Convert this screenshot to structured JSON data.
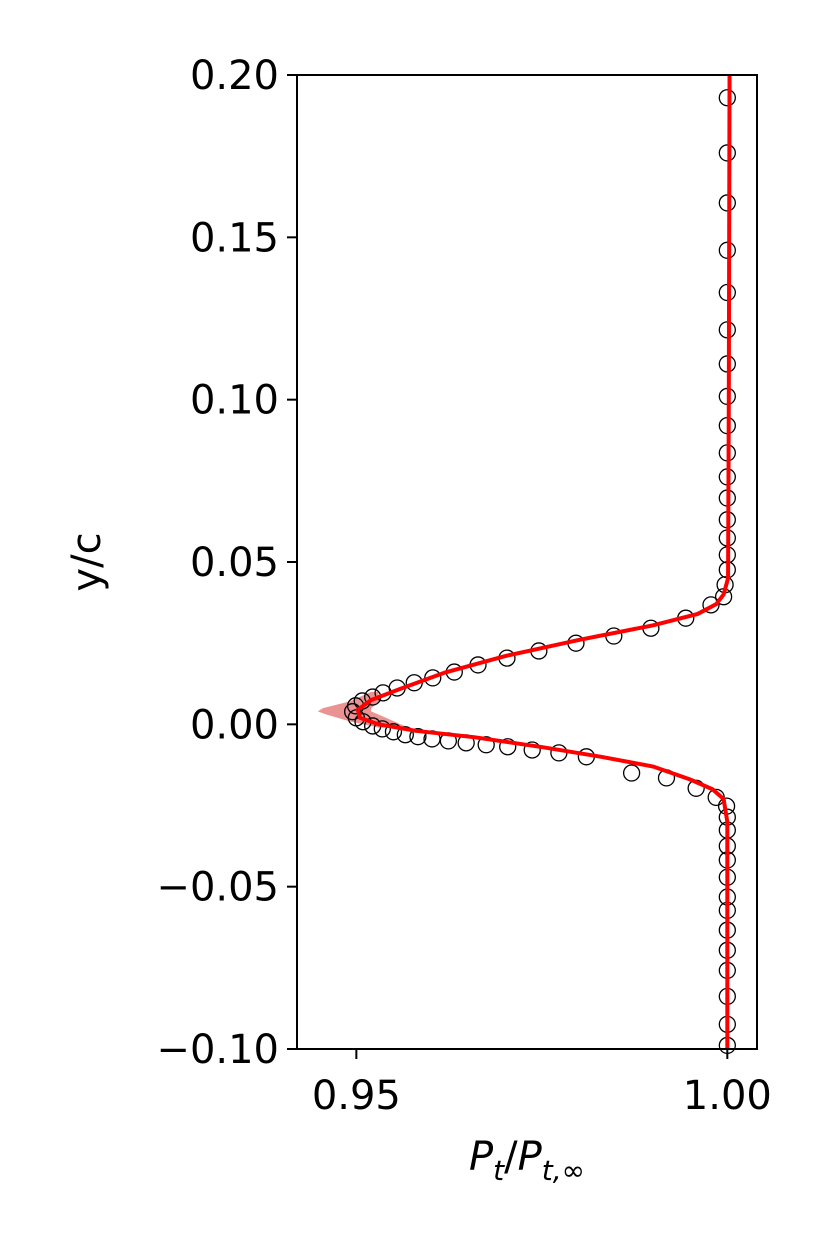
{
  "chart_data": {
    "type": "scatter",
    "xlabel": [
      "P",
      "t",
      "/",
      "P",
      "t,∞"
    ],
    "ylabel": "y/c",
    "xlim": [
      0.942,
      1.004
    ],
    "ylim": [
      -0.1,
      0.2
    ],
    "xticks": [
      0.95,
      {
        "value": 1.0,
        "label": "1.00"
      }
    ],
    "yticks": [
      {
        "value": -0.1,
        "label": "−0.10"
      },
      {
        "value": -0.05,
        "label": "−0.05"
      },
      {
        "value": 0.0,
        "label": "0.00"
      },
      0.05,
      {
        "value": 0.1,
        "label": "0.10"
      },
      0.15,
      {
        "value": 0.2,
        "label": "0.20"
      }
    ],
    "band": {
      "color": "#e88080",
      "y": [
        0.01,
        0.007,
        0.005,
        0.004,
        0.003,
        0.001,
        -0.001
      ],
      "x_low": [
        0.952,
        0.949,
        0.9455,
        0.9448,
        0.946,
        0.949,
        0.953
      ],
      "x_high": [
        0.953,
        0.953,
        0.952,
        0.952,
        0.953,
        0.955,
        0.957
      ]
    },
    "series": [
      {
        "kind": "markers",
        "color": "#000000",
        "x": [
          1.0,
          1.0,
          1.0,
          1.0,
          1.0,
          1.0,
          1.0,
          1.0,
          1.0,
          1.0,
          1.0,
          1.0,
          1.0,
          1.0,
          1.0,
          1.0,
          0.9997,
          0.9995,
          0.9978,
          0.9944,
          0.9897,
          0.9847,
          0.9796,
          0.9746,
          0.9703,
          0.9664,
          0.9632,
          0.9603,
          0.9578,
          0.9555,
          0.9536,
          0.9522,
          0.9508,
          0.9499,
          0.9495,
          0.95,
          0.9509,
          0.9522,
          0.9535,
          0.955,
          0.9566,
          0.9583,
          0.9602,
          0.9624,
          0.9648,
          0.9675,
          0.9704,
          0.9737,
          0.9773,
          0.981,
          0.9871,
          0.9918,
          0.9958,
          0.9985,
          0.9999,
          1.0,
          1.0,
          1.0,
          1.0,
          1.0,
          1.0,
          1.0,
          1.0,
          1.0,
          1.0,
          1.0,
          1.0,
          1.0
        ],
        "y": [
          0.193,
          0.176,
          0.1606,
          0.146,
          0.133,
          0.1215,
          0.111,
          0.101,
          0.092,
          0.0836,
          0.0762,
          0.0697,
          0.063,
          0.0574,
          0.0522,
          0.0476,
          0.043,
          0.0393,
          0.0368,
          0.0327,
          0.0296,
          0.0272,
          0.025,
          0.0226,
          0.0204,
          0.0183,
          0.0161,
          0.0143,
          0.0128,
          0.0112,
          0.0097,
          0.0084,
          0.0072,
          0.0057,
          0.0039,
          0.002,
          0.0008,
          -0.0005,
          -0.0014,
          -0.0023,
          -0.0032,
          -0.0038,
          -0.0045,
          -0.0051,
          -0.0057,
          -0.0063,
          -0.0069,
          -0.0079,
          -0.0088,
          -0.01,
          -0.015,
          -0.0165,
          -0.0197,
          -0.0225,
          -0.0252,
          -0.0286,
          -0.0326,
          -0.0375,
          -0.0418,
          -0.0471,
          -0.0532,
          -0.0573,
          -0.0634,
          -0.0696,
          -0.0758,
          -0.0838,
          -0.0924,
          -0.0989
        ]
      },
      {
        "kind": "line",
        "color": "#ff0000",
        "x": [
          1.0003,
          1.0002,
          1.0001,
          0.9995,
          0.9985,
          0.996,
          0.99,
          0.98,
          0.97,
          0.962,
          0.956,
          0.952,
          0.9502,
          0.9505,
          0.953,
          0.958,
          0.966,
          0.975,
          0.983,
          0.99,
          0.995,
          0.998,
          0.9995,
          1.0,
          1.0
        ],
        "y": [
          0.2,
          0.1,
          0.045,
          0.04,
          0.037,
          0.034,
          0.0305,
          0.026,
          0.021,
          0.016,
          0.011,
          0.0075,
          0.0045,
          0.002,
          0.0,
          -0.002,
          -0.004,
          -0.007,
          -0.01,
          -0.013,
          -0.017,
          -0.02,
          -0.023,
          -0.03,
          -0.1
        ]
      }
    ]
  }
}
